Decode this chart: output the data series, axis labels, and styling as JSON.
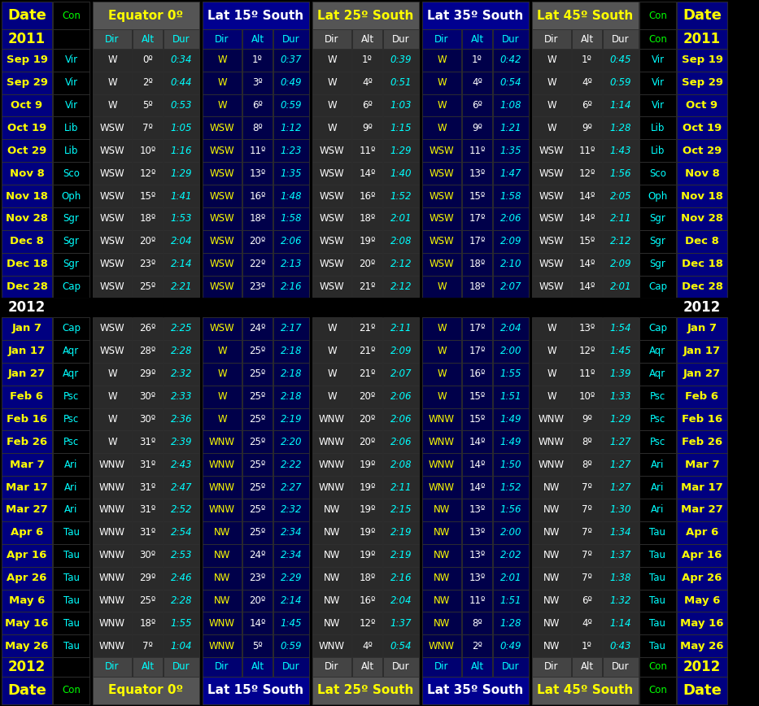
{
  "rows": [
    [
      "Sep 19",
      "Vir",
      "W",
      "0º",
      "0:34",
      "W",
      "1º",
      "0:37",
      "W",
      "1º",
      "0:39",
      "W",
      "1º",
      "0:42",
      "W",
      "1º",
      "0:45"
    ],
    [
      "Sep 29",
      "Vir",
      "W",
      "2º",
      "0:44",
      "W",
      "3º",
      "0:49",
      "W",
      "4º",
      "0:51",
      "W",
      "4º",
      "0:54",
      "W",
      "4º",
      "0:59"
    ],
    [
      "Oct 9",
      "Vir",
      "W",
      "5º",
      "0:53",
      "W",
      "6º",
      "0:59",
      "W",
      "6º",
      "1:03",
      "W",
      "6º",
      "1:08",
      "W",
      "6º",
      "1:14"
    ],
    [
      "Oct 19",
      "Lib",
      "WSW",
      "7º",
      "1:05",
      "WSW",
      "8º",
      "1:12",
      "W",
      "9º",
      "1:15",
      "W",
      "9º",
      "1:21",
      "W",
      "9º",
      "1:28"
    ],
    [
      "Oct 29",
      "Lib",
      "WSW",
      "10º",
      "1:16",
      "WSW",
      "11º",
      "1:23",
      "WSW",
      "11º",
      "1:29",
      "WSW",
      "11º",
      "1:35",
      "WSW",
      "11º",
      "1:43"
    ],
    [
      "Nov 8",
      "Sco",
      "WSW",
      "12º",
      "1:29",
      "WSW",
      "13º",
      "1:35",
      "WSW",
      "14º",
      "1:40",
      "WSW",
      "13º",
      "1:47",
      "WSW",
      "12º",
      "1:56"
    ],
    [
      "Nov 18",
      "Oph",
      "WSW",
      "15º",
      "1:41",
      "WSW",
      "16º",
      "1:48",
      "WSW",
      "16º",
      "1:52",
      "WSW",
      "15º",
      "1:58",
      "WSW",
      "14º",
      "2:05"
    ],
    [
      "Nov 28",
      "Sgr",
      "WSW",
      "18º",
      "1:53",
      "WSW",
      "18º",
      "1:58",
      "WSW",
      "18º",
      "2:01",
      "WSW",
      "17º",
      "2:06",
      "WSW",
      "14º",
      "2:11"
    ],
    [
      "Dec 8",
      "Sgr",
      "WSW",
      "20º",
      "2:04",
      "WSW",
      "20º",
      "2:06",
      "WSW",
      "19º",
      "2:08",
      "WSW",
      "17º",
      "2:09",
      "WSW",
      "15º",
      "2:12"
    ],
    [
      "Dec 18",
      "Sgr",
      "WSW",
      "23º",
      "2:14",
      "WSW",
      "22º",
      "2:13",
      "WSW",
      "20º",
      "2:12",
      "WSW",
      "18º",
      "2:10",
      "WSW",
      "14º",
      "2:09"
    ],
    [
      "Dec 28",
      "Cap",
      "WSW",
      "25º",
      "2:21",
      "WSW",
      "23º",
      "2:16",
      "WSW",
      "21º",
      "2:12",
      "W",
      "18º",
      "2:07",
      "WSW",
      "14º",
      "2:01"
    ],
    [
      "Jan 7",
      "Cap",
      "WSW",
      "26º",
      "2:25",
      "WSW",
      "24º",
      "2:17",
      "W",
      "21º",
      "2:11",
      "W",
      "17º",
      "2:04",
      "W",
      "13º",
      "1:54"
    ],
    [
      "Jan 17",
      "Aqr",
      "WSW",
      "28º",
      "2:28",
      "W",
      "25º",
      "2:18",
      "W",
      "21º",
      "2:09",
      "W",
      "17º",
      "2:00",
      "W",
      "12º",
      "1:45"
    ],
    [
      "Jan 27",
      "Aqr",
      "W",
      "29º",
      "2:32",
      "W",
      "25º",
      "2:18",
      "W",
      "21º",
      "2:07",
      "W",
      "16º",
      "1:55",
      "W",
      "11º",
      "1:39"
    ],
    [
      "Feb 6",
      "Psc",
      "W",
      "30º",
      "2:33",
      "W",
      "25º",
      "2:18",
      "W",
      "20º",
      "2:06",
      "W",
      "15º",
      "1:51",
      "W",
      "10º",
      "1:33"
    ],
    [
      "Feb 16",
      "Psc",
      "W",
      "30º",
      "2:36",
      "W",
      "25º",
      "2:19",
      "WNW",
      "20º",
      "2:06",
      "WNW",
      "15º",
      "1:49",
      "WNW",
      "9º",
      "1:29"
    ],
    [
      "Feb 26",
      "Psc",
      "W",
      "31º",
      "2:39",
      "WNW",
      "25º",
      "2:20",
      "WNW",
      "20º",
      "2:06",
      "WNW",
      "14º",
      "1:49",
      "WNW",
      "8º",
      "1:27"
    ],
    [
      "Mar 7",
      "Ari",
      "WNW",
      "31º",
      "2:43",
      "WNW",
      "25º",
      "2:22",
      "WNW",
      "19º",
      "2:08",
      "WNW",
      "14º",
      "1:50",
      "WNW",
      "8º",
      "1:27"
    ],
    [
      "Mar 17",
      "Ari",
      "WNW",
      "31º",
      "2:47",
      "WNW",
      "25º",
      "2:27",
      "WNW",
      "19º",
      "2:11",
      "WNW",
      "14º",
      "1:52",
      "NW",
      "7º",
      "1:27"
    ],
    [
      "Mar 27",
      "Ari",
      "WNW",
      "31º",
      "2:52",
      "WNW",
      "25º",
      "2:32",
      "NW",
      "19º",
      "2:15",
      "NW",
      "13º",
      "1:56",
      "NW",
      "7º",
      "1:30"
    ],
    [
      "Apr 6",
      "Tau",
      "WNW",
      "31º",
      "2:54",
      "NW",
      "25º",
      "2:34",
      "NW",
      "19º",
      "2:19",
      "NW",
      "13º",
      "2:00",
      "NW",
      "7º",
      "1:34"
    ],
    [
      "Apr 16",
      "Tau",
      "WNW",
      "30º",
      "2:53",
      "NW",
      "24º",
      "2:34",
      "NW",
      "19º",
      "2:19",
      "NW",
      "13º",
      "2:02",
      "NW",
      "7º",
      "1:37"
    ],
    [
      "Apr 26",
      "Tau",
      "WNW",
      "29º",
      "2:46",
      "NW",
      "23º",
      "2:29",
      "NW",
      "18º",
      "2:16",
      "NW",
      "13º",
      "2:01",
      "NW",
      "7º",
      "1:38"
    ],
    [
      "May 6",
      "Tau",
      "WNW",
      "25º",
      "2:28",
      "NW",
      "20º",
      "2:14",
      "NW",
      "16º",
      "2:04",
      "NW",
      "11º",
      "1:51",
      "NW",
      "6º",
      "1:32"
    ],
    [
      "May 16",
      "Tau",
      "WNW",
      "18º",
      "1:55",
      "WNW",
      "14º",
      "1:45",
      "NW",
      "12º",
      "1:37",
      "NW",
      "8º",
      "1:28",
      "NW",
      "4º",
      "1:14"
    ],
    [
      "May 26",
      "Tau",
      "WNW",
      "7º",
      "1:04",
      "WNW",
      "5º",
      "0:59",
      "WNW",
      "4º",
      "0:54",
      "WNW",
      "2º",
      "0:49",
      "NW",
      "1º",
      "0:43"
    ]
  ],
  "cons": [
    "Vir",
    "Vir",
    "Vir",
    "Lib",
    "Lib",
    "Sco",
    "Oph",
    "Sgr",
    "Sgr",
    "Sgr",
    "Cap",
    "Cap",
    "Aqr",
    "Aqr",
    "Psc",
    "Psc",
    "Psc",
    "Ari",
    "Ari",
    "Ari",
    "Tau",
    "Tau",
    "Tau",
    "Tau",
    "Tau",
    "Tau"
  ],
  "bg": "#000000",
  "date_bg": "#000080",
  "date_text": "#ffff00",
  "con_text": "#00ff00",
  "row_con_text": "#00ffff",
  "eq_header_bg": "#555555",
  "eq_header_text": "#ffff00",
  "lat15_header_bg": "#000090",
  "lat15_header_text": "#ffffff",
  "lat25_header_bg": "#555555",
  "lat25_header_text": "#ffff00",
  "lat35_header_bg": "#000090",
  "lat35_header_text": "#ffffff",
  "lat45_header_bg": "#555555",
  "lat45_header_text": "#ffff00",
  "subhdr_eq_bg": "#444444",
  "subhdr_eq_text": "#00ffff",
  "subhdr_lat15_bg": "#000070",
  "subhdr_lat15_text": "#00ffff",
  "subhdr_lat25_bg": "#444444",
  "subhdr_lat25_text": "#ffffff",
  "subhdr_lat35_bg": "#000070",
  "subhdr_lat35_text": "#00ffff",
  "subhdr_lat45_bg": "#444444",
  "subhdr_lat45_text": "#ffffff",
  "eq_row_bg": "#2a2a2a",
  "eq_dir_text": "#ffffff",
  "eq_alt_text": "#ffffff",
  "eq_dur_text": "#00ffff",
  "lat15_row_bg": "#00004a",
  "lat15_dir_text": "#ffff00",
  "lat15_alt_text": "#ffffff",
  "lat15_dur_text": "#00ffff",
  "lat25_row_bg": "#2a2a2a",
  "lat25_dir_text": "#ffffff",
  "lat25_alt_text": "#ffffff",
  "lat25_dur_text": "#00ffff",
  "lat35_row_bg": "#00004a",
  "lat35_dir_text": "#ffff00",
  "lat35_alt_text": "#ffffff",
  "lat35_dur_text": "#00ffff",
  "lat45_row_bg": "#2a2a2a",
  "lat45_dir_text": "#ffffff",
  "lat45_alt_text": "#ffffff",
  "lat45_dur_text": "#00ffff",
  "year_text": "#ffffff",
  "sep_line": "#555555"
}
